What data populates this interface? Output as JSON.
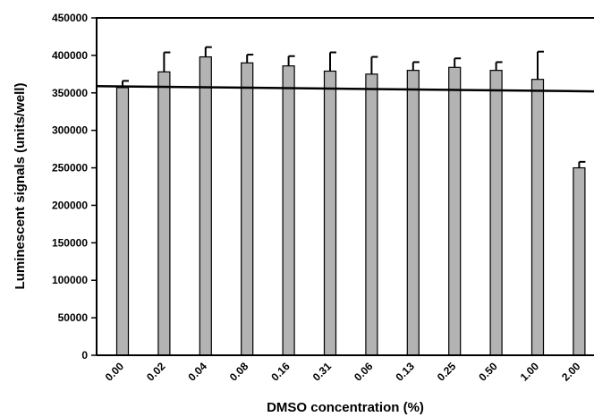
{
  "chart_data": {
    "type": "bar",
    "title": "",
    "xlabel": "DMSO concentration (%)",
    "ylabel": "Luminescent signals (units/well)",
    "ylim": [
      0,
      450000
    ],
    "yticks": [
      0,
      50000,
      100000,
      150000,
      200000,
      250000,
      300000,
      350000,
      400000,
      450000
    ],
    "grid": false,
    "legend": "none",
    "categories": [
      "0.00",
      "0.02",
      "0.04",
      "0.08",
      "0.16",
      "0.31",
      "0.06",
      "0.13",
      "0.25",
      "0.50",
      "1.00",
      "2.00"
    ],
    "values": [
      357000,
      378000,
      398000,
      390000,
      386000,
      379000,
      375000,
      380000,
      384000,
      380000,
      368000,
      250000
    ],
    "error_upper": [
      9000,
      26000,
      13000,
      11000,
      13000,
      25000,
      23000,
      11000,
      12000,
      11000,
      37000,
      8000
    ],
    "trendline": {
      "y_start": 359000,
      "y_end": 352000
    },
    "bar_color": "#b3b3b3"
  }
}
